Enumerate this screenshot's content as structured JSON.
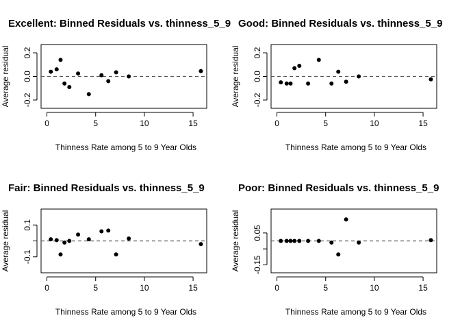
{
  "chart_data": [
    {
      "type": "scatter",
      "title": "Excellent: Binned Residuals vs. thinness_5_9",
      "xlabel": "Thinness Rate among 5 to 9 Year Olds",
      "ylabel": "Average residual",
      "xlim": [
        -0.6,
        16.4
      ],
      "ylim": [
        -0.27,
        0.27
      ],
      "xticks": [
        0,
        5,
        10,
        15
      ],
      "yticks": [
        -0.2,
        0.0,
        0.2
      ],
      "ytick_labels": [
        "-0.2",
        "0.0",
        "0.2"
      ],
      "reference_line": {
        "y": 0,
        "style": "dashed"
      },
      "x": [
        0.4,
        1.0,
        1.4,
        1.8,
        2.3,
        3.2,
        4.3,
        5.6,
        6.3,
        7.1,
        8.4,
        15.8
      ],
      "y": [
        0.04,
        0.06,
        0.14,
        -0.06,
        -0.09,
        0.025,
        -0.15,
        0.01,
        -0.04,
        0.035,
        0.0,
        0.045
      ]
    },
    {
      "type": "scatter",
      "title": "Good: Binned Residuals vs. thinness_5_9",
      "xlabel": "Thinness Rate among 5 to 9 Year Olds",
      "ylabel": "Average residual",
      "xlim": [
        -0.6,
        16.4
      ],
      "ylim": [
        -0.27,
        0.27
      ],
      "xticks": [
        0,
        5,
        10,
        15
      ],
      "yticks": [
        -0.2,
        0.0,
        0.2
      ],
      "ytick_labels": [
        "-0.2",
        "0.0",
        "0.2"
      ],
      "reference_line": {
        "y": 0,
        "style": "dashed"
      },
      "x": [
        0.4,
        1.0,
        1.4,
        1.8,
        2.3,
        3.2,
        4.3,
        5.6,
        6.3,
        7.1,
        8.4,
        15.8
      ],
      "y": [
        -0.05,
        -0.06,
        -0.06,
        0.07,
        0.09,
        -0.06,
        0.14,
        -0.06,
        0.04,
        -0.045,
        0.0,
        -0.025
      ]
    },
    {
      "type": "scatter",
      "title": "Fair: Binned Residuals vs. thinness_5_9",
      "xlabel": "Thinness Rate among 5 to 9 Year Olds",
      "ylabel": "Average residual",
      "xlim": [
        -0.6,
        16.4
      ],
      "ylim": [
        -0.2,
        0.2
      ],
      "xticks": [
        0,
        5,
        10,
        15
      ],
      "yticks": [
        -0.1,
        0.1
      ],
      "ytick_labels": [
        "-0.1",
        "0.1"
      ],
      "reference_line": {
        "y": 0,
        "style": "dashed"
      },
      "x": [
        0.4,
        1.0,
        1.4,
        1.8,
        2.3,
        3.2,
        4.3,
        5.6,
        6.3,
        7.1,
        8.4,
        15.8
      ],
      "y": [
        0.01,
        0.005,
        -0.085,
        -0.01,
        0.0,
        0.04,
        0.01,
        0.06,
        0.065,
        -0.085,
        0.015,
        -0.02
      ]
    },
    {
      "type": "scatter",
      "title": "Poor: Binned Residuals vs. thinness_5_9",
      "xlabel": "Thinness Rate among 5 to 9 Year Olds",
      "ylabel": "Average residual",
      "xlim": [
        -0.6,
        16.4
      ],
      "ylim": [
        -0.2,
        0.2
      ],
      "xticks": [
        0,
        5,
        10,
        15
      ],
      "yticks": [
        -0.15,
        0.05
      ],
      "ytick_labels": [
        "-0.15",
        "0.05"
      ],
      "reference_line": {
        "y": 0,
        "style": "dashed"
      },
      "x": [
        0.4,
        1.0,
        1.4,
        1.8,
        2.3,
        3.2,
        4.3,
        5.6,
        6.3,
        7.1,
        8.4,
        15.8
      ],
      "y": [
        0.0,
        0.0,
        0.0,
        0.0,
        0.0,
        0.0,
        0.0,
        -0.01,
        -0.085,
        0.135,
        -0.01,
        0.005
      ]
    }
  ]
}
